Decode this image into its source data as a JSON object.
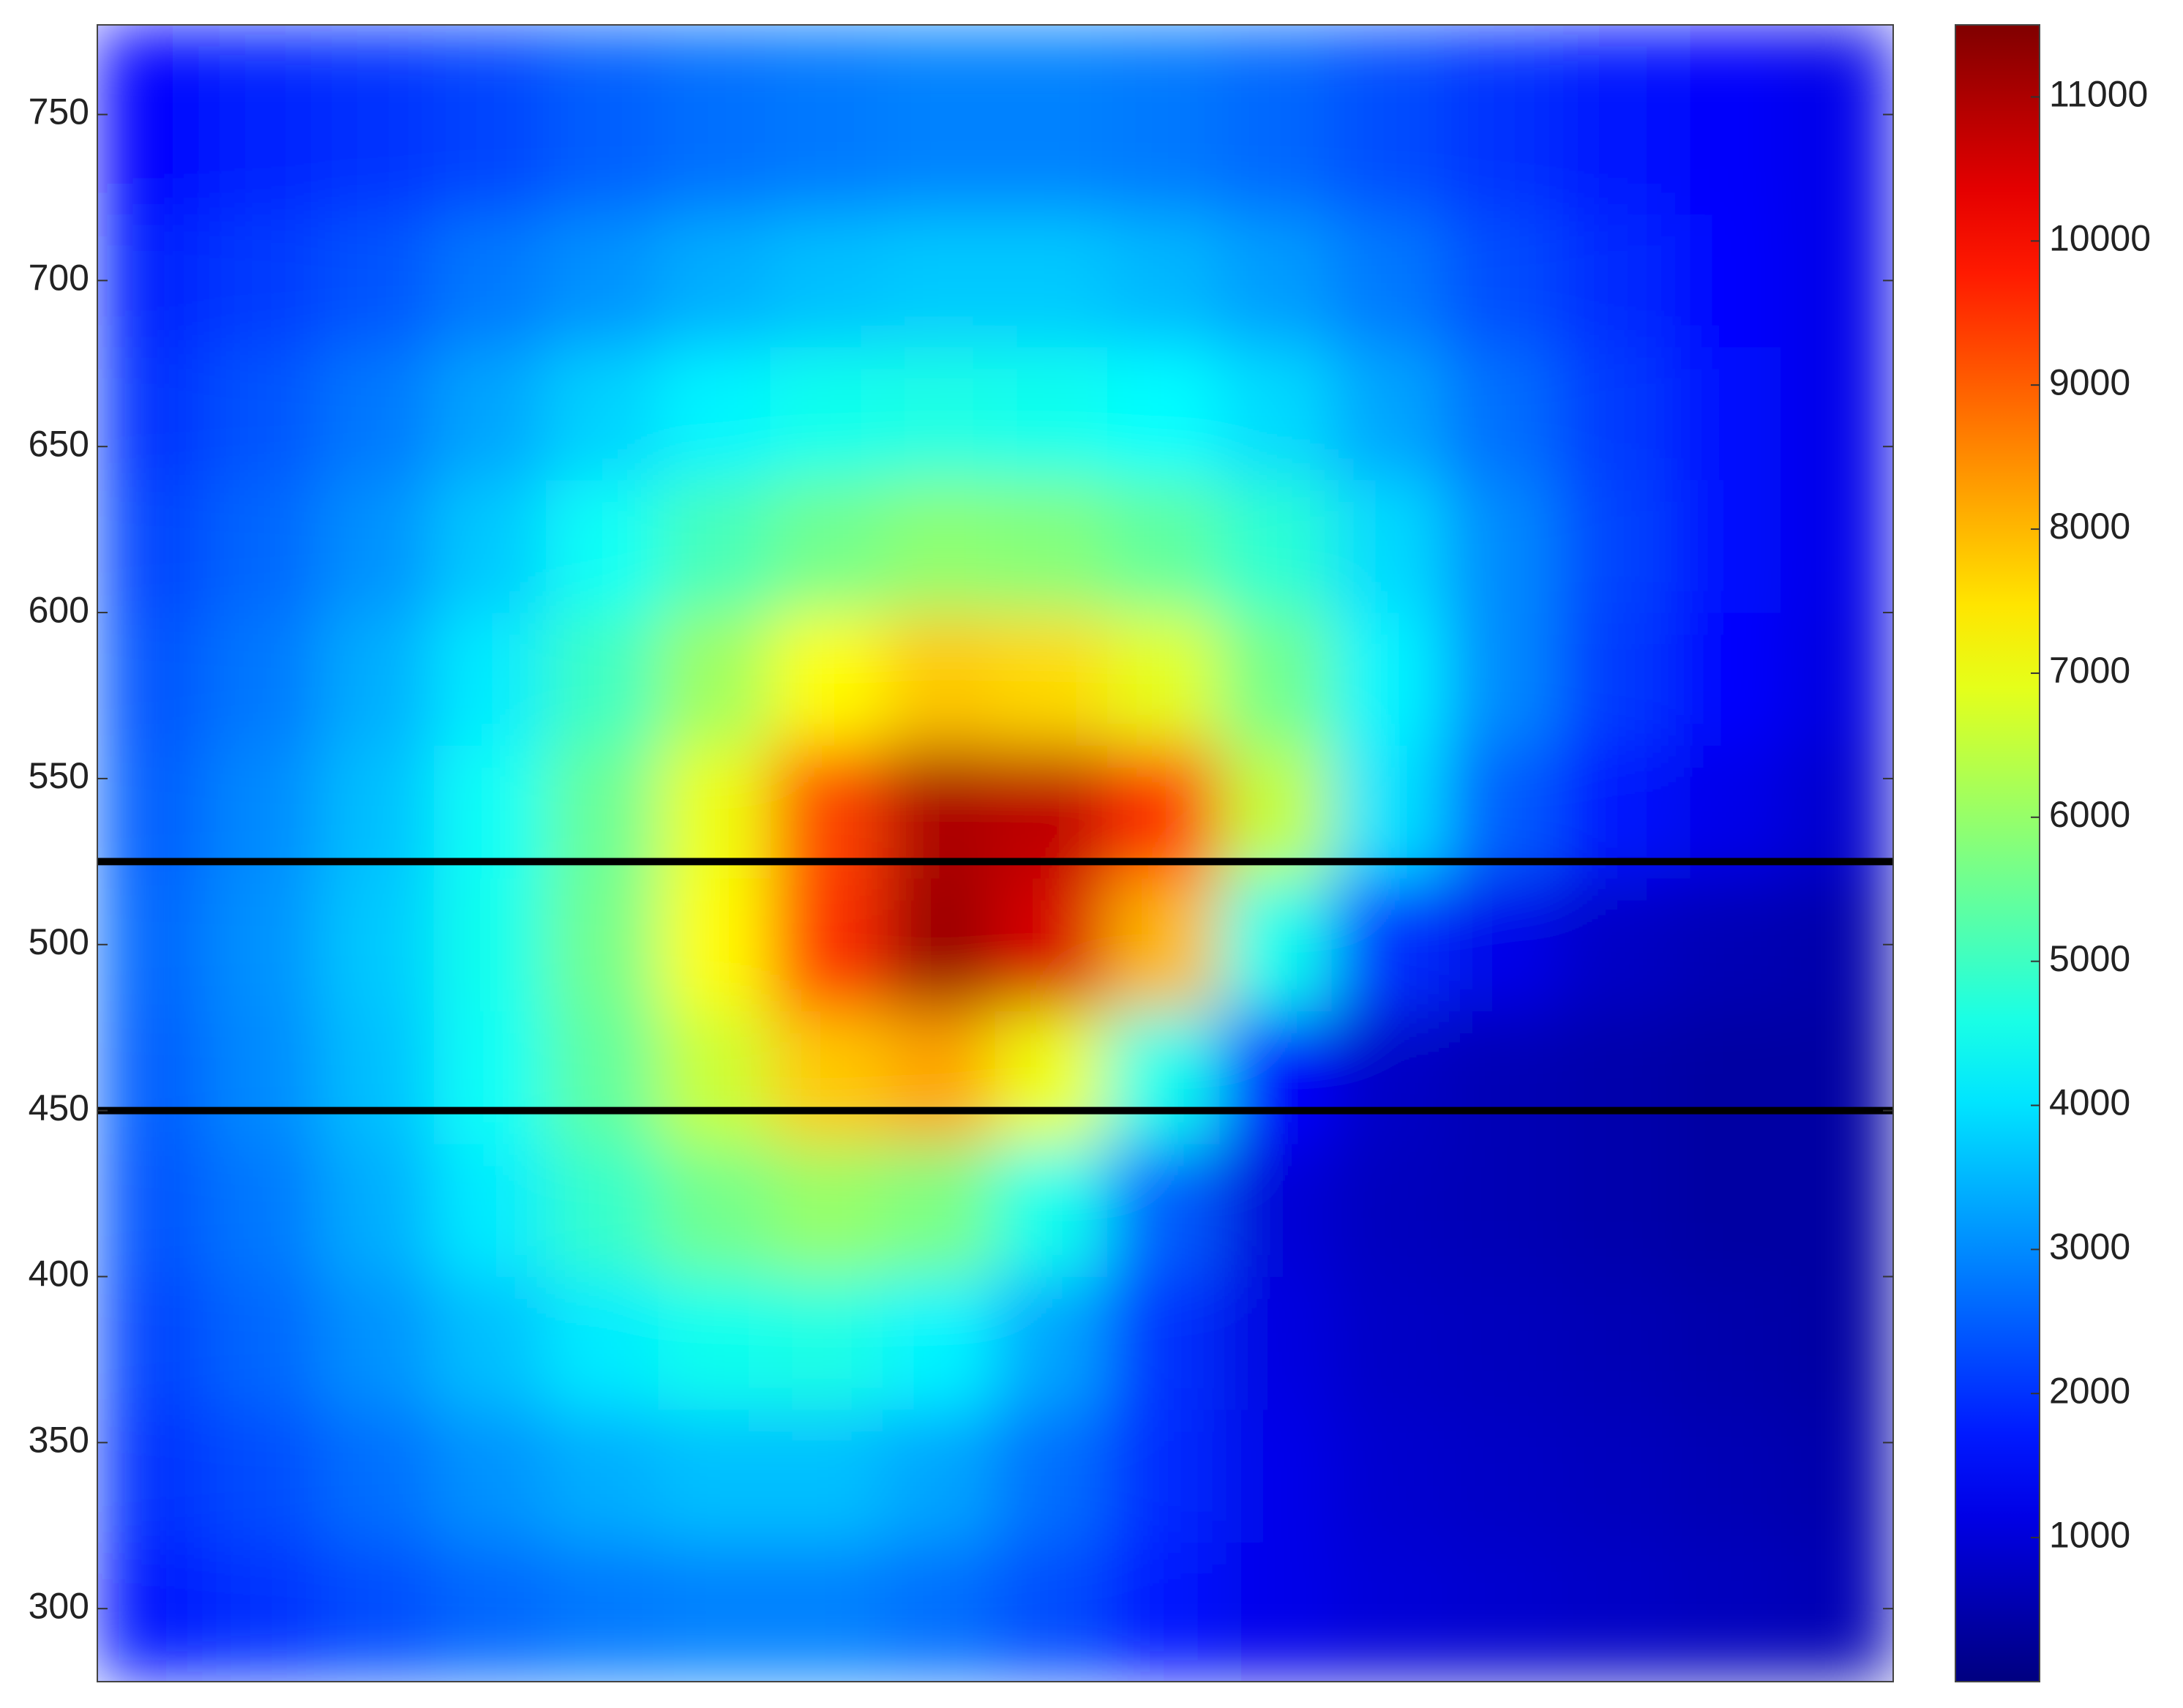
{
  "chart_data": {
    "type": "heatmap",
    "colormap": "jet",
    "categories": [
      null,
      null,
      null,
      null,
      null,
      null,
      null,
      null,
      null,
      null,
      null,
      null,
      null,
      null,
      null,
      null
    ],
    "y": [
      300,
      340,
      380,
      420,
      460,
      500,
      540,
      580,
      620,
      660,
      700,
      740
    ],
    "z": [
      [
        1700,
        2000,
        2300,
        2600,
        2800,
        2900,
        2900,
        2700,
        2300,
        1700,
        1200,
        1000,
        900,
        800,
        700,
        600
      ],
      [
        2000,
        2300,
        2700,
        3100,
        3400,
        3600,
        3600,
        3300,
        2700,
        1900,
        1200,
        900,
        800,
        700,
        600,
        500
      ],
      [
        2200,
        2600,
        3100,
        3600,
        4100,
        4500,
        4600,
        4200,
        3300,
        2000,
        1100,
        800,
        700,
        600,
        500,
        400
      ],
      [
        2400,
        2800,
        3400,
        4100,
        4900,
        5600,
        6000,
        5700,
        4500,
        2500,
        1000,
        700,
        600,
        500,
        400,
        400
      ],
      [
        2500,
        3000,
        3600,
        4400,
        5400,
        6600,
        7800,
        8200,
        7000,
        4500,
        1500,
        800,
        600,
        500,
        400,
        400
      ],
      [
        2600,
        3100,
        3700,
        4500,
        5600,
        7200,
        9500,
        11200,
        10500,
        8000,
        4500,
        2000,
        1200,
        800,
        600,
        500
      ],
      [
        2500,
        3000,
        3600,
        4400,
        5500,
        7000,
        9300,
        11000,
        10800,
        9500,
        6500,
        4000,
        2500,
        1700,
        1200,
        900
      ],
      [
        2400,
        2800,
        3400,
        4100,
        5000,
        6100,
        7200,
        7800,
        7600,
        6900,
        5600,
        4200,
        3000,
        2100,
        1500,
        1100
      ],
      [
        2200,
        2600,
        3100,
        3700,
        4400,
        5100,
        5600,
        5900,
        5800,
        5400,
        4800,
        3900,
        3000,
        2200,
        1600,
        1200
      ],
      [
        2000,
        2400,
        2800,
        3300,
        3800,
        4200,
        4500,
        4600,
        4500,
        4300,
        3900,
        3300,
        2700,
        2100,
        1600,
        1200
      ],
      [
        1800,
        2100,
        2400,
        2800,
        3100,
        3400,
        3600,
        3700,
        3700,
        3500,
        3200,
        2800,
        2300,
        1900,
        1500,
        1200
      ],
      [
        1500,
        1800,
        2000,
        2200,
        2500,
        2700,
        2800,
        2900,
        2900,
        2800,
        2600,
        2300,
        2000,
        1700,
        1400,
        1200
      ]
    ],
    "ylim": [
      278,
      777
    ],
    "yticks": [
      300,
      350,
      400,
      450,
      500,
      550,
      600,
      650,
      700,
      750
    ],
    "clim": [
      0,
      11500
    ],
    "cticks": [
      1000,
      2000,
      3000,
      4000,
      5000,
      6000,
      7000,
      8000,
      9000,
      10000,
      11000
    ],
    "hlines": [
      525,
      450
    ],
    "hline_color": "#000000"
  }
}
